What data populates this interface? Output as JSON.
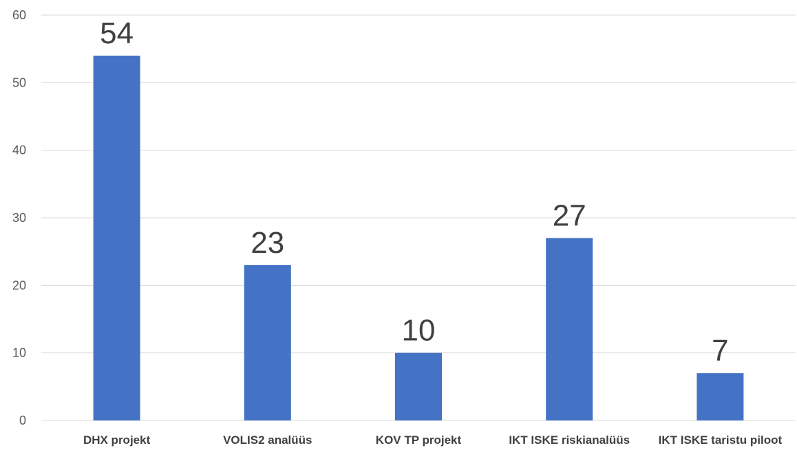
{
  "chart_data": {
    "type": "bar",
    "title": "",
    "xlabel": "",
    "ylabel": "",
    "categories": [
      "DHX projekt",
      "VOLIS2 analüüs",
      "KOV TP projekt",
      "IKT ISKE riskianalüüs",
      "IKT ISKE taristu piloot"
    ],
    "values": [
      54,
      23,
      10,
      27,
      7
    ],
    "ylim": [
      0,
      60
    ],
    "yticks": [
      0,
      10,
      20,
      30,
      40,
      50,
      60
    ],
    "data_labels": [
      "54",
      "23",
      "10",
      "27",
      "7"
    ],
    "grid": true,
    "legend": "none",
    "colors": {
      "bar": "#4472c4",
      "grid": "#d9d9d9",
      "tick_text": "#595959",
      "category_text": "#404040",
      "data_label_text": "#404040"
    }
  }
}
